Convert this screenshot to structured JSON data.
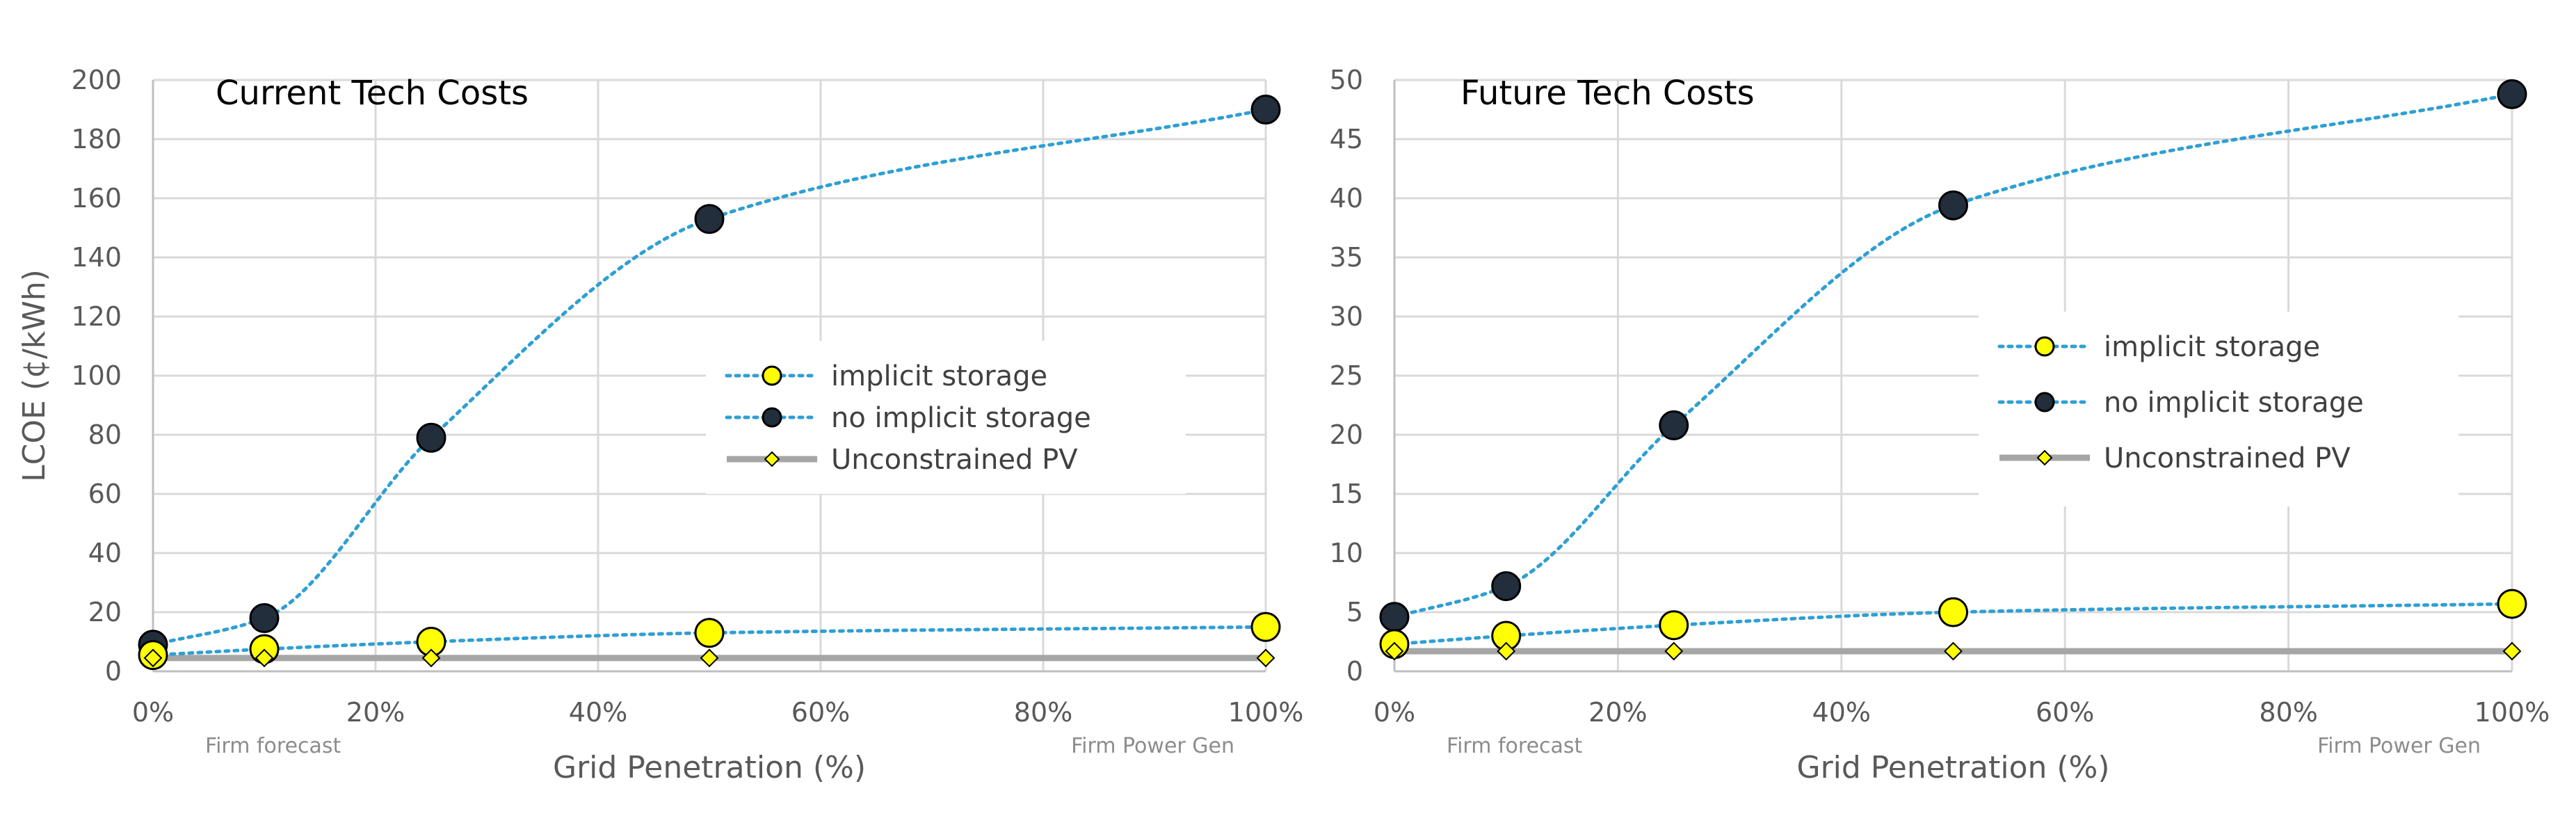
{
  "colors": {
    "implicit_line": "#2e9fd4",
    "implicit_marker": "#ffff00",
    "no_implicit_marker": "#222e3c",
    "pv_line": "#a6a6a6",
    "pv_marker": "#ffff00",
    "marker_stroke": "#000000",
    "grid": "#d9d9d9",
    "axis": "#bfbfbf"
  },
  "chart_data": [
    {
      "type": "line",
      "title": "Current Tech Costs",
      "xlabel": "Grid Penetration (%)",
      "ylabel": "LCOE  (¢/kWh)",
      "xlim": [
        0,
        100
      ],
      "ylim": [
        0,
        200
      ],
      "x_ticks": [
        0,
        20,
        40,
        60,
        80,
        100
      ],
      "x_tick_labels": [
        "0%",
        "20%",
        "40%",
        "60%",
        "80%",
        "100%"
      ],
      "y_ticks": [
        0,
        20,
        40,
        60,
        80,
        100,
        120,
        140,
        160,
        180,
        200
      ],
      "y_tick_labels": [
        "0",
        "20",
        "40",
        "60",
        "80",
        "100",
        "120",
        "140",
        "160",
        "180",
        "200"
      ],
      "sub_labels": {
        "left": "Firm forecast",
        "right": "Firm Power Gen"
      },
      "legend": [
        "implicit storage",
        "no implicit storage",
        "Unconstrained PV"
      ],
      "series": [
        {
          "name": "implicit storage",
          "x": [
            0,
            10,
            25,
            50,
            100
          ],
          "values": [
            5.5,
            7.5,
            10,
            13,
            15
          ]
        },
        {
          "name": "no implicit storage",
          "x": [
            0,
            10,
            25,
            50,
            100
          ],
          "values": [
            9,
            18,
            79,
            153,
            190
          ]
        },
        {
          "name": "Unconstrained PV",
          "x": [
            0,
            10,
            25,
            50,
            100
          ],
          "values": [
            4.5,
            4.5,
            4.5,
            4.5,
            4.5
          ]
        }
      ]
    },
    {
      "type": "line",
      "title": "Future Tech Costs",
      "xlabel": "Grid Penetration (%)",
      "ylabel": "",
      "xlim": [
        0,
        100
      ],
      "ylim": [
        0,
        50
      ],
      "x_ticks": [
        0,
        20,
        40,
        60,
        80,
        100
      ],
      "x_tick_labels": [
        "0%",
        "20%",
        "40%",
        "60%",
        "80%",
        "100%"
      ],
      "y_ticks": [
        0,
        5,
        10,
        15,
        20,
        25,
        30,
        35,
        40,
        45,
        50
      ],
      "y_tick_labels": [
        "0",
        "5",
        "10",
        "15",
        "20",
        "25",
        "30",
        "35",
        "40",
        "45",
        "50"
      ],
      "sub_labels": {
        "left": "Firm forecast",
        "right": "Firm Power Gen"
      },
      "legend": [
        "implicit storage",
        "no implicit storage",
        "Unconstrained PV"
      ],
      "series": [
        {
          "name": "implicit storage",
          "x": [
            0,
            10,
            25,
            50,
            100
          ],
          "values": [
            2.3,
            3,
            3.9,
            5,
            5.7
          ]
        },
        {
          "name": "no implicit storage",
          "x": [
            0,
            10,
            25,
            50,
            100
          ],
          "values": [
            4.6,
            7.2,
            20.8,
            39.4,
            48.8
          ]
        },
        {
          "name": "Unconstrained PV",
          "x": [
            0,
            10,
            25,
            50,
            100
          ],
          "values": [
            1.7,
            1.7,
            1.7,
            1.7,
            1.7
          ]
        }
      ]
    }
  ]
}
